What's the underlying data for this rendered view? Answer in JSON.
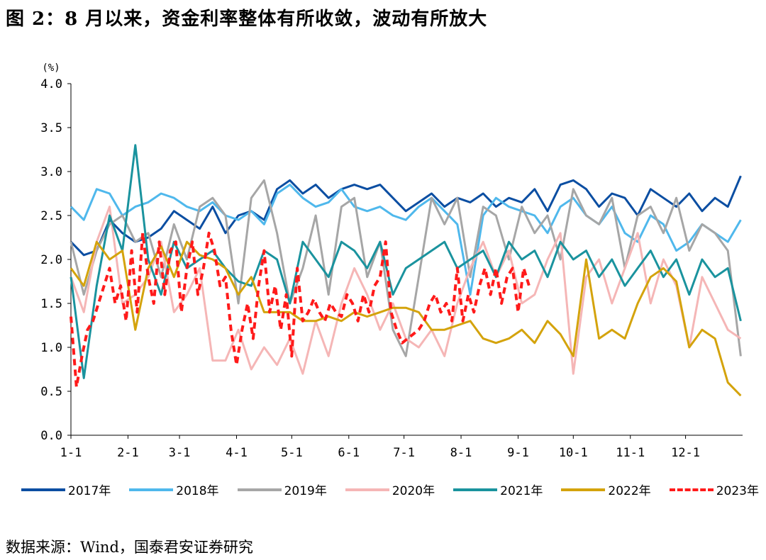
{
  "title": "图 2：8 月以来，资金利率整体有所收敛，波动有所放大",
  "source": "数据来源：Wind，国泰君安证券研究",
  "chart_data": {
    "type": "line",
    "ylabel": "(%)",
    "ylim": [
      0,
      4
    ],
    "yticks": [
      "0.0",
      "0.5",
      "1.0",
      "1.5",
      "2.0",
      "2.5",
      "3.0",
      "3.5",
      "4.0"
    ],
    "ytick_values": [
      0,
      0.5,
      1.0,
      1.5,
      2.0,
      2.5,
      3.0,
      3.5,
      4.0
    ],
    "xlim": [
      1,
      366
    ],
    "xticks": [
      "1-1",
      "2-1",
      "3-1",
      "4-1",
      "5-1",
      "6-1",
      "7-1",
      "8-1",
      "9-1",
      "10-1",
      "11-1",
      "12-1"
    ],
    "xtick_days": [
      1,
      32,
      60,
      91,
      121,
      152,
      182,
      213,
      244,
      274,
      305,
      335
    ],
    "legend_position": "bottom",
    "series": [
      {
        "name": "2017年",
        "color": "#0b4ea2",
        "dash": false,
        "x": [
          1,
          8,
          15,
          22,
          29,
          36,
          43,
          50,
          57,
          64,
          71,
          78,
          85,
          92,
          99,
          106,
          113,
          120,
          127,
          134,
          141,
          148,
          155,
          162,
          169,
          176,
          183,
          190,
          197,
          204,
          211,
          218,
          225,
          232,
          239,
          246,
          253,
          260,
          267,
          274,
          281,
          288,
          295,
          302,
          309,
          316,
          323,
          330,
          337,
          344,
          351,
          358,
          365
        ],
        "y": [
          2.2,
          2.05,
          2.1,
          2.45,
          2.3,
          2.2,
          2.25,
          2.35,
          2.55,
          2.45,
          2.35,
          2.6,
          2.3,
          2.5,
          2.55,
          2.45,
          2.8,
          2.9,
          2.75,
          2.85,
          2.7,
          2.8,
          2.85,
          2.8,
          2.85,
          2.7,
          2.55,
          2.65,
          2.75,
          2.6,
          2.7,
          2.65,
          2.75,
          2.6,
          2.7,
          2.65,
          2.8,
          2.55,
          2.85,
          2.9,
          2.8,
          2.6,
          2.75,
          2.7,
          2.5,
          2.8,
          2.7,
          2.6,
          2.75,
          2.55,
          2.7,
          2.6,
          2.95
        ]
      },
      {
        "name": "2018年",
        "color": "#4fb8ec",
        "dash": false,
        "x": [
          1,
          8,
          15,
          22,
          29,
          36,
          43,
          50,
          57,
          64,
          71,
          78,
          85,
          92,
          99,
          106,
          113,
          120,
          127,
          134,
          141,
          148,
          155,
          162,
          169,
          176,
          183,
          190,
          197,
          204,
          211,
          218,
          225,
          232,
          239,
          246,
          253,
          260,
          267,
          274,
          281,
          288,
          295,
          302,
          309,
          316,
          323,
          330,
          337,
          344,
          351,
          358,
          365
        ],
        "y": [
          2.6,
          2.45,
          2.8,
          2.75,
          2.5,
          2.6,
          2.65,
          2.75,
          2.7,
          2.6,
          2.55,
          2.65,
          2.5,
          2.45,
          2.55,
          2.4,
          2.75,
          2.85,
          2.7,
          2.6,
          2.65,
          2.8,
          2.6,
          2.55,
          2.6,
          2.5,
          2.45,
          2.6,
          2.7,
          2.55,
          2.4,
          1.6,
          2.5,
          2.7,
          2.6,
          2.55,
          2.5,
          2.3,
          2.6,
          2.7,
          2.5,
          2.4,
          2.6,
          2.3,
          2.2,
          2.5,
          2.4,
          2.1,
          2.2,
          2.4,
          2.3,
          2.2,
          2.45
        ]
      },
      {
        "name": "2019年",
        "color": "#a6a6a6",
        "dash": false,
        "x": [
          1,
          8,
          15,
          22,
          29,
          36,
          43,
          50,
          57,
          64,
          71,
          78,
          85,
          92,
          99,
          106,
          113,
          120,
          127,
          134,
          141,
          148,
          155,
          162,
          169,
          176,
          183,
          190,
          197,
          204,
          211,
          218,
          225,
          232,
          239,
          246,
          253,
          260,
          267,
          274,
          281,
          288,
          295,
          302,
          309,
          316,
          323,
          330,
          337,
          344,
          351,
          358,
          365
        ],
        "y": [
          2.2,
          1.6,
          2.1,
          2.4,
          2.5,
          2.2,
          2.3,
          1.8,
          2.4,
          2.0,
          2.6,
          2.7,
          2.5,
          1.5,
          2.7,
          2.9,
          2.3,
          1.5,
          1.9,
          2.5,
          1.6,
          2.6,
          2.7,
          1.8,
          2.2,
          1.2,
          0.9,
          1.8,
          2.7,
          2.4,
          2.7,
          1.8,
          2.6,
          2.5,
          2.0,
          2.6,
          2.3,
          2.5,
          2.0,
          2.8,
          2.5,
          2.4,
          2.7,
          1.9,
          2.5,
          2.6,
          2.3,
          2.7,
          2.1,
          2.4,
          2.3,
          2.1,
          0.9
        ]
      },
      {
        "name": "2020年",
        "color": "#f5b6b6",
        "dash": false,
        "x": [
          1,
          8,
          15,
          22,
          29,
          36,
          43,
          50,
          57,
          64,
          71,
          78,
          85,
          92,
          99,
          106,
          113,
          120,
          127,
          134,
          141,
          148,
          155,
          162,
          169,
          176,
          183,
          190,
          197,
          204,
          211,
          218,
          225,
          232,
          239,
          246,
          253,
          260,
          267,
          274,
          281,
          288,
          295,
          302,
          309,
          316,
          323,
          330,
          337,
          344,
          351,
          358,
          365
        ],
        "y": [
          1.8,
          1.4,
          2.2,
          2.6,
          1.5,
          1.6,
          1.8,
          2.2,
          1.4,
          1.6,
          1.9,
          0.85,
          0.85,
          1.2,
          0.75,
          1.0,
          0.8,
          1.1,
          0.7,
          1.3,
          0.9,
          1.5,
          1.9,
          1.6,
          1.2,
          1.5,
          1.1,
          1.0,
          1.2,
          0.9,
          1.5,
          1.9,
          2.2,
          1.8,
          2.1,
          1.5,
          1.6,
          2.0,
          2.3,
          0.7,
          1.8,
          2.0,
          1.5,
          1.9,
          2.3,
          1.5,
          2.0,
          1.7,
          1.0,
          1.8,
          1.5,
          1.2,
          1.1
        ]
      },
      {
        "name": "2021年",
        "color": "#1a939e",
        "dash": false,
        "x": [
          1,
          8,
          15,
          22,
          29,
          36,
          43,
          50,
          57,
          64,
          71,
          78,
          85,
          92,
          99,
          106,
          113,
          120,
          127,
          134,
          141,
          148,
          155,
          162,
          169,
          176,
          183,
          190,
          197,
          204,
          211,
          218,
          225,
          232,
          239,
          246,
          253,
          260,
          267,
          274,
          281,
          288,
          295,
          302,
          309,
          316,
          323,
          330,
          337,
          344,
          351,
          358,
          365
        ],
        "y": [
          1.8,
          0.65,
          1.7,
          2.5,
          2.1,
          3.3,
          2.0,
          1.6,
          2.2,
          1.9,
          2.0,
          2.1,
          1.9,
          1.75,
          1.7,
          2.1,
          2.0,
          1.5,
          2.2,
          2.0,
          1.8,
          2.2,
          2.1,
          1.9,
          2.2,
          1.6,
          1.9,
          2.0,
          2.1,
          2.2,
          1.9,
          2.0,
          2.1,
          1.8,
          2.2,
          2.0,
          2.1,
          1.8,
          2.2,
          2.0,
          2.1,
          1.8,
          2.0,
          1.7,
          1.9,
          2.1,
          1.8,
          2.0,
          1.6,
          2.0,
          1.8,
          1.9,
          1.3
        ]
      },
      {
        "name": "2022年",
        "color": "#d4a30c",
        "dash": false,
        "x": [
          1,
          8,
          15,
          22,
          29,
          36,
          43,
          50,
          57,
          64,
          71,
          78,
          85,
          92,
          99,
          106,
          113,
          120,
          127,
          134,
          141,
          148,
          155,
          162,
          169,
          176,
          183,
          190,
          197,
          204,
          211,
          218,
          225,
          232,
          239,
          246,
          253,
          260,
          267,
          274,
          281,
          288,
          295,
          302,
          309,
          316,
          323,
          330,
          337,
          344,
          351,
          358,
          365
        ],
        "y": [
          1.9,
          1.7,
          2.2,
          2.0,
          2.1,
          1.2,
          1.9,
          2.15,
          1.8,
          2.2,
          2.05,
          2.0,
          1.9,
          1.6,
          1.8,
          1.4,
          1.4,
          1.4,
          1.3,
          1.3,
          1.35,
          1.3,
          1.4,
          1.35,
          1.4,
          1.45,
          1.45,
          1.4,
          1.2,
          1.2,
          1.25,
          1.3,
          1.1,
          1.05,
          1.1,
          1.2,
          1.05,
          1.3,
          1.15,
          0.9,
          2.0,
          1.1,
          1.2,
          1.1,
          1.5,
          1.8,
          1.9,
          1.75,
          1.0,
          1.2,
          1.1,
          0.6,
          0.45
        ]
      },
      {
        "name": "2023年",
        "color": "#ff1a1a",
        "dash": true,
        "x": [
          1,
          4,
          7,
          10,
          13,
          16,
          19,
          22,
          25,
          28,
          31,
          34,
          37,
          40,
          43,
          46,
          49,
          52,
          55,
          58,
          61,
          64,
          67,
          70,
          73,
          76,
          79,
          82,
          85,
          88,
          91,
          94,
          97,
          100,
          103,
          106,
          109,
          112,
          115,
          118,
          121,
          124,
          127,
          130,
          133,
          136,
          139,
          142,
          145,
          148,
          151,
          154,
          157,
          160,
          163,
          166,
          169,
          172,
          175,
          178,
          181,
          184,
          187,
          190,
          193,
          196,
          199,
          202,
          205,
          208,
          211,
          214,
          217,
          220,
          223,
          226,
          229,
          232,
          235,
          238,
          241,
          244,
          247,
          250
        ],
        "y": [
          1.35,
          0.55,
          0.9,
          1.2,
          1.3,
          1.5,
          1.7,
          1.9,
          1.5,
          1.7,
          1.3,
          2.1,
          1.4,
          2.3,
          1.8,
          1.5,
          2.2,
          1.6,
          2.1,
          2.2,
          1.4,
          1.9,
          2.2,
          1.6,
          1.9,
          2.3,
          2.1,
          1.7,
          1.8,
          1.2,
          0.8,
          1.2,
          1.5,
          1.1,
          1.7,
          2.1,
          1.4,
          1.7,
          1.2,
          1.6,
          0.9,
          1.9,
          1.3,
          1.4,
          1.55,
          1.4,
          1.3,
          1.5,
          1.4,
          1.35,
          1.6,
          1.5,
          1.3,
          1.6,
          1.4,
          1.7,
          1.8,
          2.2,
          1.4,
          1.2,
          1.05,
          1.1,
          1.15,
          1.2,
          1.3,
          1.5,
          1.6,
          1.4,
          1.5,
          1.3,
          1.9,
          1.3,
          1.6,
          1.4,
          1.7,
          1.9,
          1.6,
          1.9,
          1.5,
          1.8,
          1.9,
          1.4,
          1.9,
          1.7
        ]
      }
    ]
  }
}
